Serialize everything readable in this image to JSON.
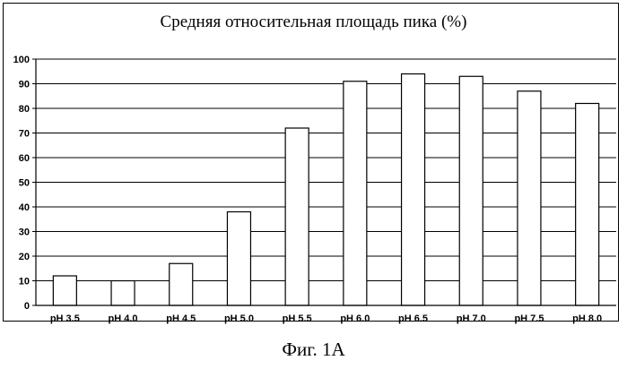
{
  "chart_data": {
    "type": "bar",
    "title": "Средняя относительная площадь пика (%)",
    "categories": [
      "pH 3.5",
      "pH 4.0",
      "pH 4.5",
      "pH 5.0",
      "pH 5.5",
      "pH 6.0",
      "pH 6.5",
      "pH 7.0",
      "pH 7.5",
      "pH 8.0"
    ],
    "values": [
      12,
      10,
      17,
      38,
      72,
      91,
      94,
      93,
      87,
      82
    ],
    "ylim": [
      0,
      100
    ],
    "yticks": [
      0,
      10,
      20,
      30,
      40,
      50,
      60,
      70,
      80,
      90,
      100
    ],
    "xlabel": "",
    "ylabel": "",
    "grid": true,
    "legend": "none",
    "bar_fill": "#ffffff",
    "bar_stroke": "#000000",
    "grid_color": "#000000"
  },
  "caption": "Фиг. 1А"
}
